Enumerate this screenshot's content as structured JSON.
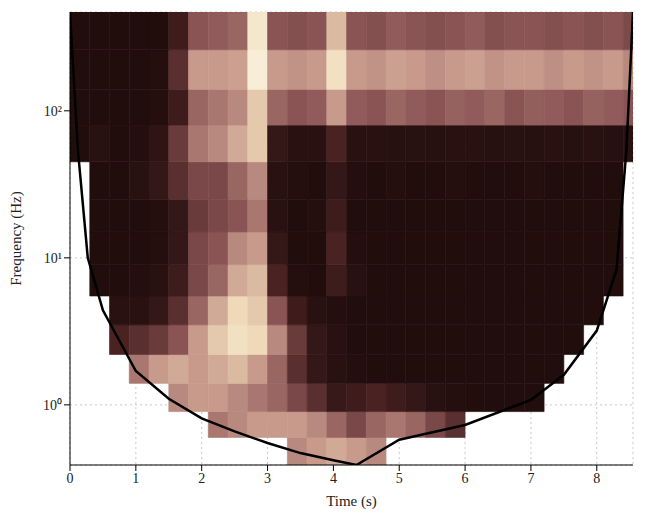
{
  "chart_data": {
    "type": "heatmap",
    "xlabel": "Time (s)",
    "ylabel": "Frequency (Hz)",
    "log": "y",
    "grid": true,
    "xlim": [
      0,
      8.55
    ],
    "xticks": [
      0,
      1,
      2,
      3,
      4,
      5,
      6,
      7,
      8
    ],
    "ylim": [
      0.39,
      470
    ],
    "yticks": [
      {
        "value": 1,
        "label": "10⁰"
      },
      {
        "value": 10,
        "label": "10¹"
      },
      {
        "value": 100,
        "label": "10²"
      }
    ],
    "cells": {
      "x_edges": [
        0,
        0.3,
        0.6,
        0.9,
        1.2,
        1.5,
        1.8,
        2.1,
        2.4,
        2.7,
        3.0,
        3.3,
        3.6,
        3.9,
        4.2,
        4.5,
        4.8,
        5.1,
        5.4,
        5.7,
        6.0,
        6.3,
        6.6,
        6.9,
        7.2,
        7.5,
        7.8,
        8.1,
        8.4,
        8.55
      ],
      "y_edges": [
        0.39,
        0.6,
        0.9,
        1.4,
        2.2,
        3.5,
        5.5,
        9,
        15,
        25,
        45,
        80,
        140,
        260,
        470
      ],
      "zlim": [
        0,
        1
      ],
      "colorscale": [
        "#1e0b0b",
        "#4a2222",
        "#8a5454",
        "#c79a8c",
        "#efd9b8",
        "#fbf4e0"
      ],
      "values": [
        [
          null,
          null,
          null,
          null,
          null,
          null,
          null,
          null,
          null,
          null,
          null,
          0.55,
          0.6,
          0.65,
          0.6,
          0.55,
          null,
          null,
          null,
          null,
          null,
          null,
          null,
          null,
          null,
          null,
          null,
          null,
          null
        ],
        [
          null,
          null,
          null,
          null,
          null,
          null,
          null,
          0.5,
          0.55,
          0.6,
          0.6,
          0.6,
          0.55,
          0.45,
          0.35,
          0.45,
          0.5,
          0.45,
          0.35,
          0.25,
          null,
          null,
          null,
          null,
          null,
          null,
          null,
          null,
          null
        ],
        [
          null,
          null,
          null,
          null,
          null,
          0.55,
          0.6,
          0.6,
          0.55,
          0.5,
          0.45,
          0.35,
          0.25,
          0.12,
          0.15,
          0.2,
          0.15,
          0.1,
          0.05,
          0.03,
          0.02,
          0.02,
          0.02,
          0.02,
          null,
          null,
          null,
          null,
          null
        ],
        [
          null,
          null,
          null,
          0.5,
          0.6,
          0.65,
          0.6,
          0.65,
          0.7,
          0.6,
          0.45,
          0.25,
          0.1,
          0.05,
          0.03,
          0.02,
          0.02,
          0.02,
          0.02,
          0.02,
          0.02,
          0.02,
          0.02,
          0.02,
          0.02,
          null,
          null,
          null,
          null
        ],
        [
          null,
          null,
          0.2,
          0.25,
          0.3,
          0.4,
          0.6,
          0.75,
          0.85,
          0.8,
          0.55,
          0.3,
          0.1,
          0.05,
          0.02,
          0.02,
          0.02,
          0.02,
          0.02,
          0.02,
          0.02,
          0.02,
          0.02,
          0.02,
          0.02,
          0.02,
          null,
          null,
          null
        ],
        [
          null,
          null,
          0.05,
          0.05,
          0.1,
          0.25,
          0.45,
          0.65,
          0.8,
          0.75,
          0.4,
          0.15,
          0.05,
          0.03,
          0.02,
          0.02,
          0.02,
          0.02,
          0.02,
          0.02,
          0.02,
          0.02,
          0.02,
          0.02,
          0.02,
          0.02,
          0.02,
          null,
          null
        ],
        [
          null,
          0.02,
          0.02,
          0.03,
          0.05,
          0.15,
          0.35,
          0.45,
          0.65,
          0.7,
          0.2,
          0.03,
          0.02,
          0.15,
          0.05,
          0.02,
          0.02,
          0.02,
          0.02,
          0.02,
          0.02,
          0.02,
          0.02,
          0.02,
          0.02,
          0.02,
          0.02,
          0.02,
          null
        ],
        [
          null,
          0.02,
          0.02,
          0.02,
          0.03,
          0.1,
          0.35,
          0.4,
          0.55,
          0.6,
          0.1,
          0.02,
          0.02,
          0.2,
          0.03,
          0.02,
          0.02,
          0.02,
          0.02,
          0.02,
          0.02,
          0.02,
          0.02,
          0.02,
          0.02,
          0.02,
          0.02,
          0.02,
          null
        ],
        [
          null,
          0.02,
          0.02,
          0.02,
          0.03,
          0.1,
          0.3,
          0.35,
          0.4,
          0.5,
          0.05,
          0.02,
          0.03,
          0.15,
          0.02,
          0.02,
          0.02,
          0.02,
          0.02,
          0.02,
          0.02,
          0.02,
          0.02,
          0.02,
          0.02,
          0.02,
          0.02,
          0.02,
          null
        ],
        [
          null,
          0.02,
          0.02,
          0.05,
          0.1,
          0.25,
          0.35,
          0.35,
          0.45,
          0.55,
          0.05,
          0.03,
          0.02,
          0.1,
          0.03,
          0.02,
          0.03,
          0.02,
          0.02,
          0.03,
          0.02,
          0.02,
          0.02,
          0.03,
          0.02,
          0.02,
          0.02,
          0.02,
          null
        ],
        [
          0.02,
          0.05,
          0.02,
          0.03,
          0.08,
          0.3,
          0.5,
          0.55,
          0.65,
          0.75,
          0.1,
          0.05,
          0.05,
          0.2,
          0.05,
          0.05,
          0.04,
          0.05,
          0.04,
          0.05,
          0.05,
          0.04,
          0.05,
          0.04,
          0.05,
          0.04,
          0.05,
          0.04,
          0.05
        ],
        [
          0.02,
          0.02,
          0.02,
          0.02,
          0.03,
          0.15,
          0.45,
          0.5,
          0.55,
          0.75,
          0.45,
          0.4,
          0.42,
          0.6,
          0.42,
          0.4,
          0.45,
          0.42,
          0.4,
          0.44,
          0.42,
          0.45,
          0.4,
          0.43,
          0.42,
          0.4,
          0.44,
          0.42,
          0.4
        ],
        [
          0.02,
          0.02,
          0.02,
          0.02,
          0.03,
          0.25,
          0.6,
          0.6,
          0.62,
          0.95,
          0.6,
          0.58,
          0.6,
          0.85,
          0.6,
          0.58,
          0.62,
          0.6,
          0.57,
          0.6,
          0.62,
          0.58,
          0.6,
          0.6,
          0.57,
          0.6,
          0.58,
          0.6,
          0.55
        ],
        [
          0.02,
          0.02,
          0.02,
          0.02,
          0.02,
          0.15,
          0.4,
          0.42,
          0.45,
          0.9,
          0.4,
          0.38,
          0.4,
          0.7,
          0.4,
          0.38,
          0.42,
          0.4,
          0.38,
          0.4,
          0.42,
          0.38,
          0.4,
          0.4,
          0.38,
          0.4,
          0.38,
          0.4,
          0.36
        ]
      ]
    },
    "cone": {
      "color": "#000000",
      "x": [
        0,
        0.12,
        0.27,
        0.5,
        1,
        1.5,
        2,
        2.5,
        3,
        3.5,
        4,
        4.35,
        5,
        6,
        7,
        7.5,
        8,
        8.3,
        8.45,
        8.55
      ],
      "y": [
        470,
        54,
        10,
        4.4,
        1.7,
        1.1,
        0.81,
        0.66,
        0.55,
        0.47,
        0.42,
        0.39,
        0.58,
        0.73,
        1.08,
        1.6,
        3.2,
        8.3,
        54,
        470
      ]
    }
  }
}
